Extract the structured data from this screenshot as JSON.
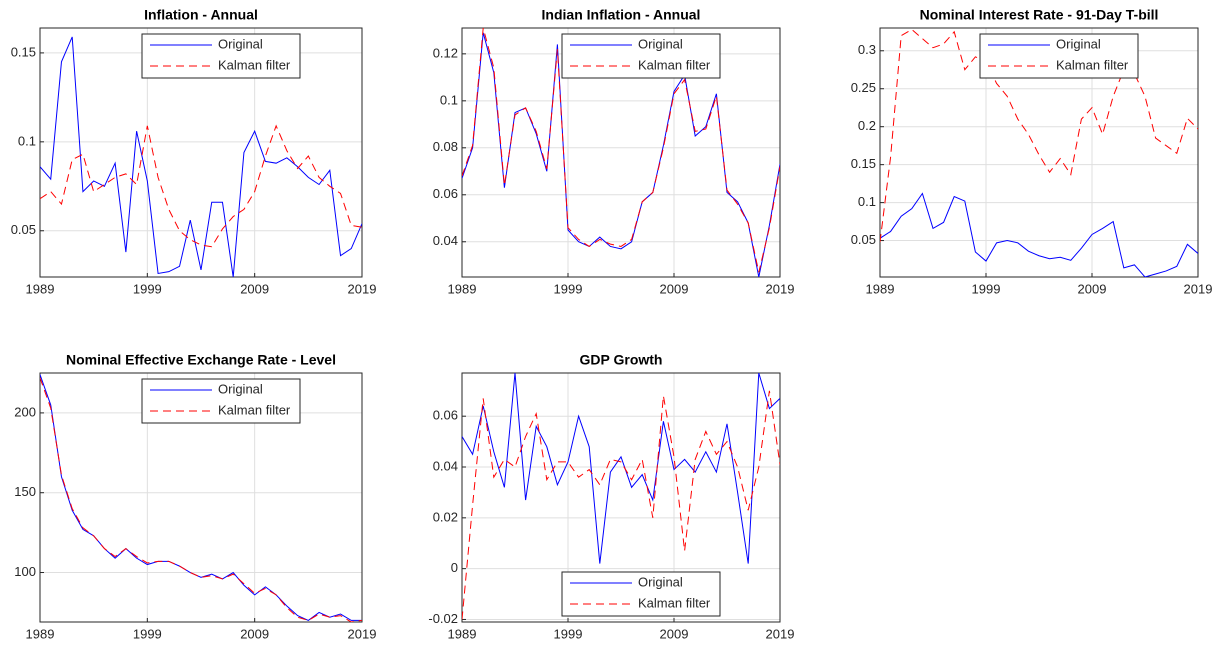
{
  "chart_data": [
    {
      "type": "line",
      "title": "Inflation - Annual",
      "legend": "north",
      "grid": true,
      "x": [
        1989,
        1990,
        1991,
        1992,
        1993,
        1994,
        1995,
        1996,
        1997,
        1998,
        1999,
        2000,
        2001,
        2002,
        2003,
        2004,
        2005,
        2006,
        2007,
        2008,
        2009,
        2010,
        2011,
        2012,
        2013,
        2014,
        2015,
        2016,
        2017,
        2018,
        2019
      ],
      "xlim": [
        1989,
        2019
      ],
      "xticks": [
        1989,
        1999,
        2009,
        2019
      ],
      "ylim": [
        0.024,
        0.164
      ],
      "yticks": [
        0.05,
        0.1,
        0.15
      ],
      "series": [
        {
          "name": "Original",
          "color": "#0000ff",
          "dash": false,
          "values": [
            0.086,
            0.079,
            0.145,
            0.159,
            0.072,
            0.078,
            0.075,
            0.088,
            0.038,
            0.106,
            0.078,
            0.026,
            0.027,
            0.03,
            0.056,
            0.028,
            0.066,
            0.066,
            0.024,
            0.094,
            0.106,
            0.089,
            0.088,
            0.091,
            0.086,
            0.08,
            0.076,
            0.084,
            0.036,
            0.04,
            0.054
          ]
        },
        {
          "name": "Kalman filter",
          "color": "#ff0000",
          "dash": true,
          "values": [
            0.068,
            0.072,
            0.065,
            0.09,
            0.093,
            0.072,
            0.076,
            0.08,
            0.082,
            0.076,
            0.109,
            0.08,
            0.062,
            0.05,
            0.045,
            0.042,
            0.041,
            0.051,
            0.058,
            0.062,
            0.072,
            0.092,
            0.109,
            0.095,
            0.085,
            0.092,
            0.08,
            0.075,
            0.071,
            0.053,
            0.052
          ]
        }
      ]
    },
    {
      "type": "line",
      "title": "Indian Inflation - Annual",
      "legend": "north",
      "grid": true,
      "x": [
        1989,
        1990,
        1991,
        1992,
        1993,
        1994,
        1995,
        1996,
        1997,
        1998,
        1999,
        2000,
        2001,
        2002,
        2003,
        2004,
        2005,
        2006,
        2007,
        2008,
        2009,
        2010,
        2011,
        2012,
        2013,
        2014,
        2015,
        2016,
        2017,
        2018,
        2019
      ],
      "xlim": [
        1989,
        2019
      ],
      "xticks": [
        1989,
        1999,
        2009,
        2019
      ],
      "ylim": [
        0.025,
        0.131
      ],
      "yticks": [
        0.04,
        0.06,
        0.08,
        0.1,
        0.12
      ],
      "series": [
        {
          "name": "Original",
          "color": "#0000ff",
          "dash": false,
          "values": [
            0.067,
            0.08,
            0.129,
            0.112,
            0.063,
            0.095,
            0.097,
            0.086,
            0.07,
            0.124,
            0.045,
            0.04,
            0.038,
            0.042,
            0.038,
            0.037,
            0.04,
            0.057,
            0.061,
            0.081,
            0.104,
            0.111,
            0.085,
            0.089,
            0.103,
            0.061,
            0.057,
            0.048,
            0.025,
            0.047,
            0.073
          ]
        },
        {
          "name": "Kalman filter",
          "color": "#ff0000",
          "dash": true,
          "values": [
            0.068,
            0.081,
            0.131,
            0.114,
            0.064,
            0.094,
            0.097,
            0.087,
            0.071,
            0.122,
            0.046,
            0.041,
            0.038,
            0.041,
            0.039,
            0.038,
            0.041,
            0.057,
            0.061,
            0.08,
            0.103,
            0.109,
            0.087,
            0.088,
            0.102,
            0.062,
            0.056,
            0.048,
            0.027,
            0.046,
            0.072
          ]
        }
      ]
    },
    {
      "type": "line",
      "title": "Nominal Interest Rate - 91-Day T-bill",
      "legend": "north",
      "grid": true,
      "x": [
        1989,
        1990,
        1991,
        1992,
        1993,
        1994,
        1995,
        1996,
        1997,
        1998,
        1999,
        2000,
        2001,
        2002,
        2003,
        2004,
        2005,
        2006,
        2007,
        2008,
        2009,
        2010,
        2011,
        2012,
        2013,
        2014,
        2015,
        2016,
        2017,
        2018,
        2019
      ],
      "xlim": [
        1989,
        2019
      ],
      "xticks": [
        1989,
        1999,
        2009,
        2019
      ],
      "ylim": [
        0.002,
        0.33
      ],
      "yticks": [
        0.05,
        0.1,
        0.15,
        0.2,
        0.25,
        0.3
      ],
      "series": [
        {
          "name": "Original",
          "color": "#0000ff",
          "dash": false,
          "values": [
            0.053,
            0.062,
            0.082,
            0.092,
            0.112,
            0.066,
            0.074,
            0.108,
            0.102,
            0.035,
            0.023,
            0.047,
            0.05,
            0.047,
            0.036,
            0.03,
            0.026,
            0.028,
            0.024,
            0.04,
            0.058,
            0.066,
            0.075,
            0.014,
            0.018,
            0.002,
            0.006,
            0.01,
            0.016,
            0.045,
            0.033
          ]
        },
        {
          "name": "Kalman filter",
          "color": "#ff0000",
          "dash": true,
          "values": [
            0.048,
            0.16,
            0.32,
            0.328,
            0.316,
            0.304,
            0.309,
            0.325,
            0.275,
            0.292,
            0.286,
            0.257,
            0.24,
            0.21,
            0.19,
            0.163,
            0.14,
            0.158,
            0.137,
            0.21,
            0.225,
            0.19,
            0.24,
            0.275,
            0.27,
            0.24,
            0.185,
            0.175,
            0.165,
            0.211,
            0.197
          ]
        }
      ]
    },
    {
      "type": "line",
      "title": "Nominal Effective Exchange Rate - Level",
      "legend": "north",
      "grid": true,
      "x": [
        1989,
        1990,
        1991,
        1992,
        1993,
        1994,
        1995,
        1996,
        1997,
        1998,
        1999,
        2000,
        2001,
        2002,
        2003,
        2004,
        2005,
        2006,
        2007,
        2008,
        2009,
        2010,
        2011,
        2012,
        2013,
        2014,
        2015,
        2016,
        2017,
        2018,
        2019
      ],
      "xlim": [
        1989,
        2019
      ],
      "xticks": [
        1989,
        1999,
        2009,
        2019
      ],
      "ylim": [
        69,
        225
      ],
      "yticks": [
        100,
        150,
        200
      ],
      "series": [
        {
          "name": "Original",
          "color": "#0000ff",
          "dash": false,
          "values": [
            224,
            205,
            160,
            139,
            127,
            123,
            115,
            109,
            115,
            109,
            105,
            107,
            107,
            104,
            100,
            97,
            99,
            96,
            100,
            92,
            86,
            91,
            86,
            79,
            73,
            70,
            75,
            72,
            74,
            70,
            70
          ]
        },
        {
          "name": "Kalman filter",
          "color": "#ff0000",
          "dash": true,
          "values": [
            222,
            203,
            161,
            140,
            128,
            123,
            115,
            110,
            115,
            110,
            106,
            107,
            107,
            104,
            100,
            97,
            98,
            96,
            99,
            93,
            87,
            90,
            86,
            78,
            72,
            70,
            74,
            72,
            73,
            69,
            70
          ]
        }
      ]
    },
    {
      "type": "line",
      "title": "GDP Growth",
      "legend": "south",
      "grid": true,
      "x": [
        1989,
        1990,
        1991,
        1992,
        1993,
        1994,
        1995,
        1996,
        1997,
        1998,
        1999,
        2000,
        2001,
        2002,
        2003,
        2004,
        2005,
        2006,
        2007,
        2008,
        2009,
        2010,
        2011,
        2012,
        2013,
        2014,
        2015,
        2016,
        2017,
        2018,
        2019
      ],
      "xlim": [
        1989,
        2019
      ],
      "xticks": [
        1989,
        1999,
        2009,
        2019
      ],
      "ylim": [
        -0.021,
        0.077
      ],
      "yticks": [
        -0.02,
        0,
        0.02,
        0.04,
        0.06
      ],
      "series": [
        {
          "name": "Original",
          "color": "#0000ff",
          "dash": false,
          "values": [
            0.052,
            0.045,
            0.064,
            0.046,
            0.032,
            0.077,
            0.027,
            0.056,
            0.048,
            0.033,
            0.042,
            0.06,
            0.048,
            0.002,
            0.038,
            0.044,
            0.032,
            0.037,
            0.027,
            0.058,
            0.039,
            0.043,
            0.038,
            0.046,
            0.038,
            0.057,
            0.03,
            0.002,
            0.077,
            0.063,
            0.067
          ]
        },
        {
          "name": "Kalman filter",
          "color": "#ff0000",
          "dash": true,
          "values": [
            -0.02,
            0.025,
            0.067,
            0.036,
            0.043,
            0.04,
            0.052,
            0.061,
            0.035,
            0.042,
            0.042,
            0.036,
            0.039,
            0.033,
            0.043,
            0.042,
            0.035,
            0.043,
            0.02,
            0.068,
            0.044,
            0.007,
            0.043,
            0.054,
            0.045,
            0.05,
            0.04,
            0.023,
            0.04,
            0.07,
            0.041
          ]
        }
      ]
    }
  ]
}
